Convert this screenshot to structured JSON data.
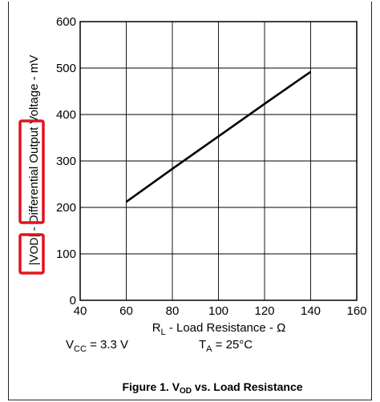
{
  "chart_data": {
    "type": "line",
    "title": "",
    "xlabel": {
      "main": "R",
      "sub": "L",
      "rest": " - Load Resistance  - Ω"
    },
    "ylabel": {
      "pre": "|V",
      "sub": "OD",
      "post": "| - Differential Output Voltage - mV"
    },
    "xlim": [
      40,
      160
    ],
    "ylim": [
      0,
      600
    ],
    "xticks": [
      40,
      60,
      80,
      100,
      120,
      140,
      160
    ],
    "yticks": [
      0,
      100,
      200,
      300,
      400,
      500,
      600
    ],
    "grid": true,
    "x": [
      60,
      80,
      100,
      120,
      140
    ],
    "series": [
      {
        "values": [
          212,
          283,
          353,
          423,
          492
        ],
        "color": "#000000"
      }
    ],
    "highlight_color": "#e0141e"
  },
  "conditions": {
    "vcc": {
      "main": "V",
      "sub": "CC",
      "rest": " = 3.3 V"
    },
    "ta": {
      "main": "T",
      "sub": "A",
      "rest": " = 25°C"
    }
  },
  "caption": {
    "pre": "Figure 1. V",
    "sub": "OD",
    "post": " vs. Load Resistance"
  }
}
